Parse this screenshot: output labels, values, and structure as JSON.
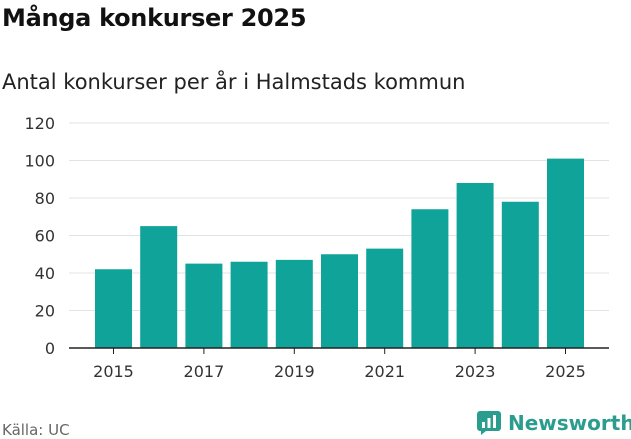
{
  "title": "Många konkurser 2025",
  "subtitle": "Antal konkurser per år i Halmstads kommun",
  "source": "Källa: UC",
  "brand": {
    "name": "Newsworthy",
    "icon": "newsworthy-logo-icon"
  },
  "colors": {
    "bar": "#0fa39a",
    "grid": "#e3e3e3",
    "axis": "#222222",
    "brand": "#2a9d8f"
  },
  "chart_data": {
    "type": "bar",
    "categories": [
      "2015",
      "2016",
      "2017",
      "2018",
      "2019",
      "2020",
      "2021",
      "2022",
      "2023",
      "2024",
      "2025"
    ],
    "values": [
      42,
      65,
      45,
      46,
      47,
      50,
      53,
      74,
      88,
      78,
      101
    ],
    "xtick_labels": [
      "2015",
      "2017",
      "2019",
      "2021",
      "2023",
      "2025"
    ],
    "ylim": [
      0,
      120
    ],
    "yticks": [
      0,
      20,
      40,
      60,
      80,
      100,
      120
    ],
    "grid": true,
    "legend": "none"
  }
}
